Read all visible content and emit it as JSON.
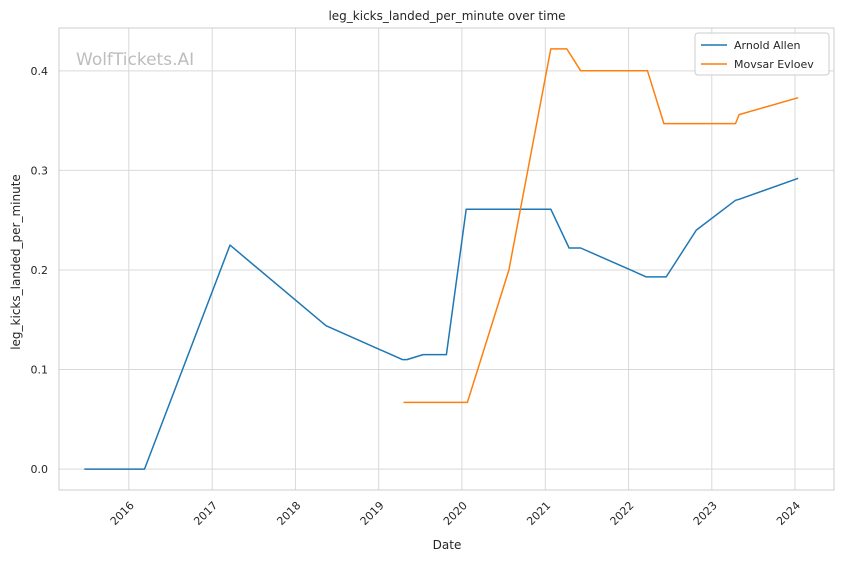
{
  "chart_data": {
    "type": "line",
    "title": "leg_kicks_landed_per_minute over time",
    "xlabel": "Date",
    "ylabel": "leg_kicks_landed_per_minute",
    "watermark": "WolfTickets.AI",
    "x_ticks": [
      "2016",
      "2017",
      "2018",
      "2019",
      "2020",
      "2021",
      "2022",
      "2023",
      "2024"
    ],
    "y_ticks": [
      "0.0",
      "0.1",
      "0.2",
      "0.3",
      "0.4"
    ],
    "xlim": [
      "2015-03-01",
      "2024-06-20"
    ],
    "ylim": [
      -0.021,
      0.443
    ],
    "grid": true,
    "legend_position": "top-right",
    "series": [
      {
        "name": "Arnold Allen",
        "color": "#1f77b4",
        "points": [
          [
            "2015-06-20",
            0.0
          ],
          [
            "2016-03-10",
            0.0
          ],
          [
            "2017-03-20",
            0.225
          ],
          [
            "2018-05-15",
            0.144
          ],
          [
            "2019-04-15",
            0.11
          ],
          [
            "2019-05-05",
            0.11
          ],
          [
            "2019-07-15",
            0.115
          ],
          [
            "2019-10-25",
            0.115
          ],
          [
            "2020-01-20",
            0.261
          ],
          [
            "2021-01-25",
            0.261
          ],
          [
            "2021-04-15",
            0.222
          ],
          [
            "2021-06-05",
            0.222
          ],
          [
            "2022-03-20",
            0.193
          ],
          [
            "2022-06-15",
            0.193
          ],
          [
            "2022-10-25",
            0.24
          ],
          [
            "2023-04-15",
            0.27
          ],
          [
            "2023-05-01",
            0.271
          ],
          [
            "2024-01-15",
            0.292
          ]
        ]
      },
      {
        "name": "Movsar Evloev",
        "color": "#ff7f0e",
        "points": [
          [
            "2019-04-20",
            0.067
          ],
          [
            "2020-01-25",
            0.067
          ],
          [
            "2020-07-25",
            0.2
          ],
          [
            "2021-01-25",
            0.422
          ],
          [
            "2021-04-05",
            0.422
          ],
          [
            "2021-06-05",
            0.4
          ],
          [
            "2022-03-25",
            0.4
          ],
          [
            "2022-06-05",
            0.347
          ],
          [
            "2023-04-15",
            0.347
          ],
          [
            "2023-05-01",
            0.356
          ],
          [
            "2024-01-15",
            0.373
          ]
        ]
      }
    ]
  }
}
